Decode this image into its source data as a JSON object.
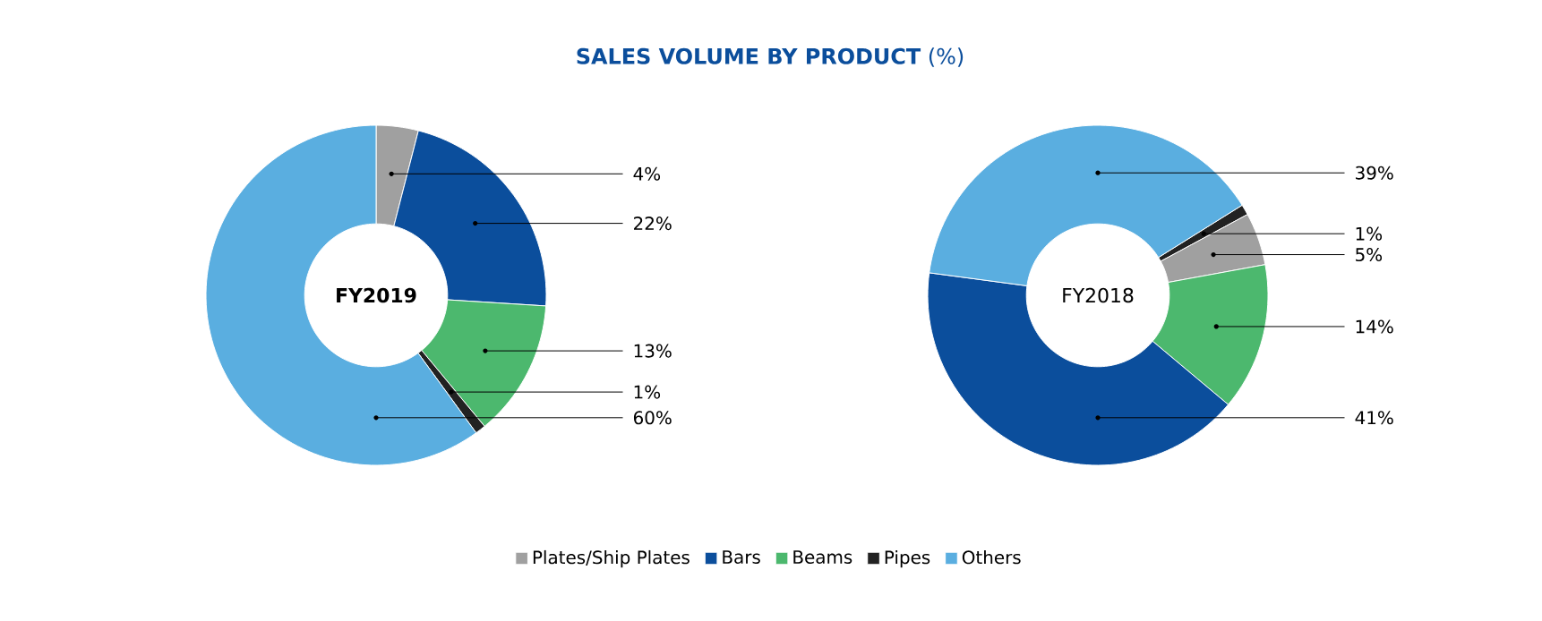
{
  "chart_data": [
    {
      "type": "donut",
      "title": "**SALES VOLUME BY PRODUCT** (%)",
      "annotations": [
        "FY2019"
      ],
      "categories": [
        "Plates/Ship Plates",
        "Bars",
        "Beams",
        "Pipes",
        "Others"
      ],
      "values": [
        4,
        22,
        13,
        1,
        60
      ],
      "value_labels": [
        "4%",
        "22%",
        "13%",
        "1%",
        "60%"
      ],
      "colors": [
        "#a0a0a0",
        "#0b4e9c",
        "#4cb86e",
        "#222222",
        "#5aaee0"
      ],
      "legend": "bottom"
    },
    {
      "type": "donut",
      "annotations": [
        "FY2018"
      ],
      "categories": [
        null,
        null,
        null,
        null,
        null
      ],
      "values": [
        1,
        5,
        14,
        41,
        39
      ],
      "value_labels": [
        "1%",
        "5%",
        "14%",
        "41%",
        "39%"
      ],
      "colors": [
        "#222222",
        "#a0a0a0",
        "#4cb86e",
        "#0b4e9c",
        "#5aaee0"
      ],
      "legend": false
    }
  ]
}
